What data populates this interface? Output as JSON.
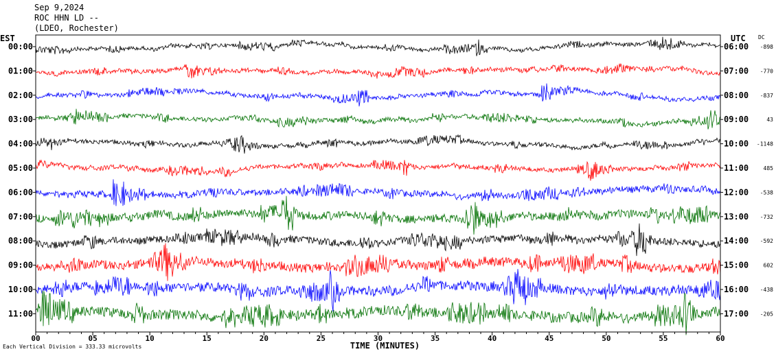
{
  "header": {
    "date": "Sep 9,2024",
    "station": "ROC HHN LD --",
    "network": "(LDEO, Rochester)"
  },
  "chart_data": {
    "type": "line",
    "title": "",
    "left_axis_label": "EST",
    "right_axis_label": "UTC",
    "dc_label": "DC",
    "xlabel": "TIME (MINUTES)",
    "xlim": [
      0,
      60
    ],
    "x_ticks": [
      "00",
      "05",
      "10",
      "15",
      "20",
      "25",
      "30",
      "35",
      "40",
      "45",
      "50",
      "55",
      "60"
    ],
    "footer_note": "Each Vertical Division = 333.33 microvolts",
    "trace_colors": [
      "#000000",
      "#ff0000",
      "#0000ff",
      "#007000"
    ],
    "rows": [
      {
        "est": "00:00",
        "utc": "06:00",
        "dc": "-898",
        "color": "#000000",
        "activity": 0.55
      },
      {
        "est": "01:00",
        "utc": "07:00",
        "dc": "-770",
        "color": "#ff0000",
        "activity": 0.6
      },
      {
        "est": "02:00",
        "utc": "08:00",
        "dc": "-837",
        "color": "#0000ff",
        "activity": 0.6
      },
      {
        "est": "03:00",
        "utc": "09:00",
        "dc": "43",
        "color": "#007000",
        "activity": 0.65
      },
      {
        "est": "04:00",
        "utc": "10:00",
        "dc": "-1148",
        "color": "#000000",
        "activity": 0.6
      },
      {
        "est": "05:00",
        "utc": "11:00",
        "dc": "485",
        "color": "#ff0000",
        "activity": 0.65
      },
      {
        "est": "06:00",
        "utc": "12:00",
        "dc": "-538",
        "color": "#0000ff",
        "activity": 0.9
      },
      {
        "est": "07:00",
        "utc": "13:00",
        "dc": "-732",
        "color": "#007000",
        "activity": 1.2
      },
      {
        "est": "08:00",
        "utc": "14:00",
        "dc": "-592",
        "color": "#000000",
        "activity": 1.1
      },
      {
        "est": "09:00",
        "utc": "15:00",
        "dc": "602",
        "color": "#ff0000",
        "activity": 1.3
      },
      {
        "est": "10:00",
        "utc": "16:00",
        "dc": "-438",
        "color": "#0000ff",
        "activity": 1.4
      },
      {
        "est": "11:00",
        "utc": "17:00",
        "dc": "-205",
        "color": "#007000",
        "activity": 1.5
      }
    ]
  }
}
